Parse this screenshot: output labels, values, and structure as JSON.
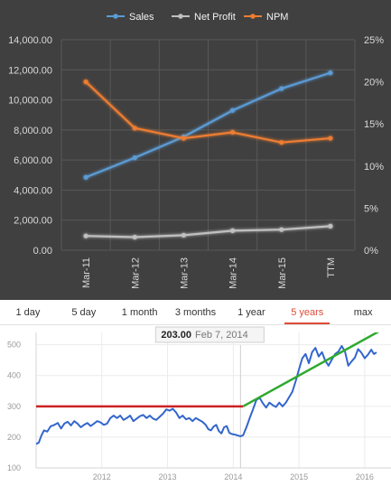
{
  "chart_data": [
    {
      "type": "line",
      "categories": [
        "Mar-11",
        "Mar-12",
        "Mar-13",
        "Mar-14",
        "Mar-15",
        "TTM"
      ],
      "series": [
        {
          "name": "Sales",
          "axis": "left",
          "color": "#5b9bd5",
          "values": [
            4850,
            6150,
            7550,
            9300,
            10750,
            11800
          ]
        },
        {
          "name": "Net Profit",
          "axis": "left",
          "color": "#bfbfbf",
          "values": [
            950,
            870,
            1000,
            1300,
            1370,
            1600
          ]
        },
        {
          "name": "NPM",
          "axis": "right",
          "color": "#ed7d31",
          "values": [
            20.0,
            14.5,
            13.3,
            14.0,
            12.8,
            13.3
          ]
        }
      ],
      "y_left": {
        "min": 0,
        "max": 14000,
        "ticks": [
          "0.00",
          "2,000.00",
          "4,000.00",
          "6,000.00",
          "8,000.00",
          "10,000.00",
          "12,000.00",
          "14,000.00"
        ]
      },
      "y_right": {
        "min": 0,
        "max": 25,
        "ticks": [
          "0%",
          "5%",
          "10%",
          "15%",
          "20%",
          "25%"
        ]
      },
      "grid": true,
      "legend_position": "top"
    },
    {
      "type": "line",
      "range_options": [
        "1 day",
        "5 day",
        "1 month",
        "3 months",
        "1 year",
        "5 years",
        "max"
      ],
      "selected_range": "5 years",
      "tooltip": {
        "value": "203.00",
        "date": "Feb 7, 2014"
      },
      "x_ticks": [
        "2012",
        "2013",
        "2014",
        "2015",
        "2016"
      ],
      "y_ticks": [
        "100",
        "200",
        "300",
        "400",
        "500"
      ],
      "ylim": [
        100,
        540
      ],
      "xlim": [
        2011.0,
        2016.4
      ],
      "price_series": {
        "color": "#3366cc",
        "points": [
          [
            2011.0,
            178
          ],
          [
            2011.04,
            182
          ],
          [
            2011.08,
            205
          ],
          [
            2011.12,
            222
          ],
          [
            2011.17,
            218
          ],
          [
            2011.22,
            235
          ],
          [
            2011.28,
            240
          ],
          [
            2011.33,
            246
          ],
          [
            2011.38,
            228
          ],
          [
            2011.43,
            244
          ],
          [
            2011.48,
            250
          ],
          [
            2011.53,
            238
          ],
          [
            2011.58,
            252
          ],
          [
            2011.63,
            244
          ],
          [
            2011.68,
            232
          ],
          [
            2011.73,
            240
          ],
          [
            2011.78,
            246
          ],
          [
            2011.83,
            236
          ],
          [
            2011.88,
            244
          ],
          [
            2011.93,
            252
          ],
          [
            2011.98,
            248
          ],
          [
            2012.03,
            240
          ],
          [
            2012.08,
            244
          ],
          [
            2012.13,
            262
          ],
          [
            2012.18,
            270
          ],
          [
            2012.23,
            262
          ],
          [
            2012.28,
            270
          ],
          [
            2012.33,
            256
          ],
          [
            2012.38,
            262
          ],
          [
            2012.43,
            270
          ],
          [
            2012.48,
            252
          ],
          [
            2012.53,
            260
          ],
          [
            2012.58,
            268
          ],
          [
            2012.63,
            272
          ],
          [
            2012.68,
            262
          ],
          [
            2012.73,
            270
          ],
          [
            2012.78,
            260
          ],
          [
            2012.83,
            256
          ],
          [
            2012.88,
            266
          ],
          [
            2012.93,
            276
          ],
          [
            2012.98,
            290
          ],
          [
            2013.03,
            286
          ],
          [
            2013.08,
            292
          ],
          [
            2013.13,
            280
          ],
          [
            2013.18,
            262
          ],
          [
            2013.23,
            270
          ],
          [
            2013.28,
            258
          ],
          [
            2013.33,
            262
          ],
          [
            2013.38,
            252
          ],
          [
            2013.43,
            262
          ],
          [
            2013.48,
            256
          ],
          [
            2013.53,
            250
          ],
          [
            2013.58,
            240
          ],
          [
            2013.62,
            226
          ],
          [
            2013.66,
            222
          ],
          [
            2013.7,
            234
          ],
          [
            2013.74,
            240
          ],
          [
            2013.78,
            220
          ],
          [
            2013.82,
            212
          ],
          [
            2013.86,
            232
          ],
          [
            2013.9,
            236
          ],
          [
            2013.94,
            214
          ],
          [
            2013.98,
            210
          ],
          [
            2014.03,
            208
          ],
          [
            2014.07,
            205
          ],
          [
            2014.11,
            203
          ],
          [
            2014.15,
            206
          ],
          [
            2014.2,
            232
          ],
          [
            2014.25,
            262
          ],
          [
            2014.3,
            290
          ],
          [
            2014.35,
            320
          ],
          [
            2014.4,
            328
          ],
          [
            2014.45,
            310
          ],
          [
            2014.5,
            296
          ],
          [
            2014.55,
            312
          ],
          [
            2014.6,
            304
          ],
          [
            2014.65,
            298
          ],
          [
            2014.7,
            312
          ],
          [
            2014.75,
            300
          ],
          [
            2014.8,
            312
          ],
          [
            2014.85,
            330
          ],
          [
            2014.9,
            348
          ],
          [
            2014.95,
            382
          ],
          [
            2015.0,
            420
          ],
          [
            2015.05,
            456
          ],
          [
            2015.1,
            470
          ],
          [
            2015.15,
            440
          ],
          [
            2015.2,
            476
          ],
          [
            2015.25,
            490
          ],
          [
            2015.3,
            462
          ],
          [
            2015.35,
            476
          ],
          [
            2015.4,
            448
          ],
          [
            2015.45,
            432
          ],
          [
            2015.5,
            452
          ],
          [
            2015.55,
            470
          ],
          [
            2015.6,
            478
          ],
          [
            2015.65,
            496
          ],
          [
            2015.7,
            478
          ],
          [
            2015.75,
            432
          ],
          [
            2015.8,
            446
          ],
          [
            2015.85,
            458
          ],
          [
            2015.9,
            486
          ],
          [
            2015.95,
            474
          ],
          [
            2016.0,
            456
          ],
          [
            2016.05,
            468
          ],
          [
            2016.1,
            484
          ],
          [
            2016.14,
            470
          ],
          [
            2016.18,
            475
          ]
        ]
      },
      "lines": [
        {
          "color": "#cc2222",
          "points": [
            [
              2011.0,
              300
            ],
            [
              2014.15,
              300
            ]
          ]
        },
        {
          "color": "#2eaa2e",
          "points": [
            [
              2014.15,
              300
            ],
            [
              2016.4,
              565
            ]
          ]
        }
      ]
    }
  ]
}
